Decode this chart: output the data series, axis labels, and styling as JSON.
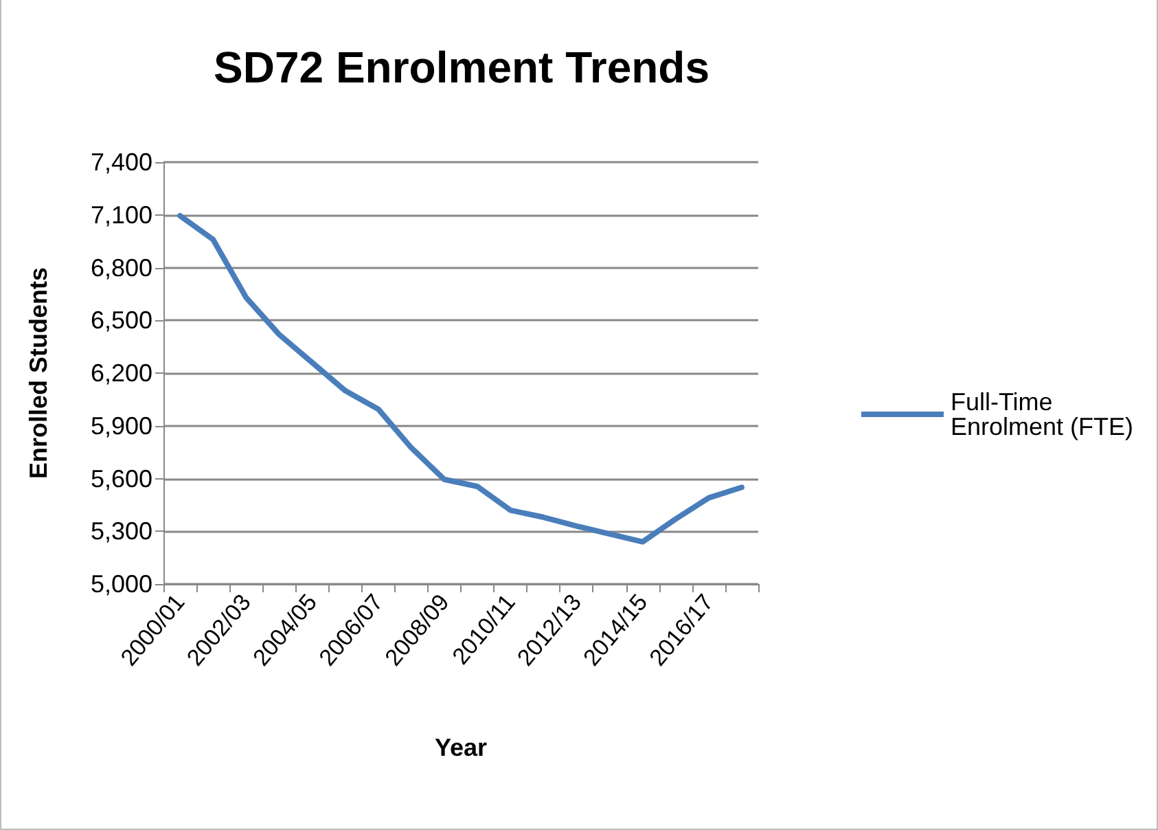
{
  "chart_data": {
    "type": "line",
    "title": "SD72 Enrolment Trends",
    "xlabel": "Year",
    "ylabel": "Enrolled Students",
    "categories": [
      "2000/01",
      null,
      "2002/03",
      null,
      "2004/05",
      null,
      "2006/07",
      null,
      "2008/09",
      null,
      "2010/11",
      null,
      "2012/13",
      null,
      "2014/15",
      null,
      "2016/17",
      null
    ],
    "series": [
      {
        "name": "Full-Time Enrolment (FTE)",
        "color": "#4a7ebb",
        "values": [
          7095,
          6960,
          6630,
          6420,
          6260,
          6100,
          5995,
          5775,
          5595,
          5555,
          5420,
          5380,
          5330,
          5285,
          5240,
          5370,
          5490,
          5550
        ]
      }
    ],
    "ylim": [
      5000,
      7400
    ],
    "yticks": [
      {
        "value": 5000,
        "label": "5,000"
      },
      {
        "value": 5300,
        "label": "5,300"
      },
      {
        "value": 5600,
        "label": "5,600"
      },
      {
        "value": 5900,
        "label": "5,900"
      },
      {
        "value": 6200,
        "label": "6,200"
      },
      {
        "value": 6500,
        "label": "6,500"
      },
      {
        "value": 6800,
        "label": "6,800"
      },
      {
        "value": 7100,
        "label": "7,100"
      },
      {
        "value": 7400,
        "label": "7,400"
      }
    ],
    "grid": "y",
    "legend": "right",
    "marker": "none",
    "line_style": "solid"
  }
}
